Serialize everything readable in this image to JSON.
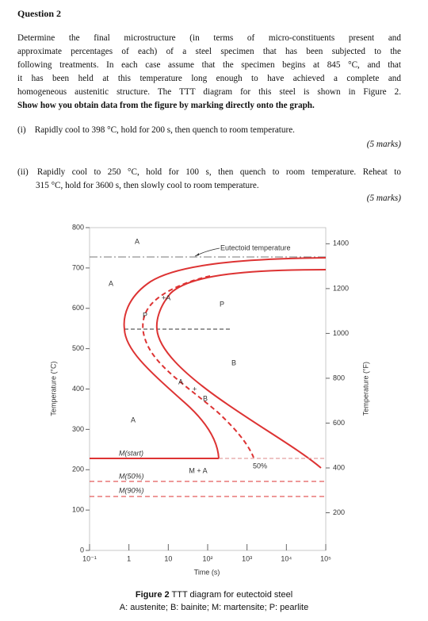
{
  "document": {
    "heading": "Question 2",
    "paragraph": [
      "Determine the final microstructure (in terms of micro-constituents present and",
      "approximate percentages of each) of a steel specimen that has been subjected to the",
      "following treatments. In each case assume that the specimen begins at 845 °C, and that",
      "it has been held at this temperature long enough to have achieved a complete and",
      "homogeneous austenitic structure. The TTT diagram for this steel is shown in Figure 2."
    ],
    "instruction": "Show how you obtain data from the figure by marking directly onto the graph.",
    "items": [
      {
        "lines": [
          "(i) Rapidly cool to 398 °C, hold for 200 s, then quench to room temperature."
        ],
        "marks": "(5 marks)"
      },
      {
        "lines": [
          "(ii) Rapidly cool to 250 °C, hold for 100 s, then quench to room temperature. Reheat to",
          "315 °C, hold for 3600 s, then slowly cool to room temperature."
        ],
        "marks": "(5 marks)"
      }
    ]
  },
  "chart_data": {
    "type": "line",
    "figure_label": "Figure 2",
    "title": "TTT diagram for eutectoid steel",
    "subtitle": "A: austenite; B: bainite; M: martensite; P: pearlite",
    "xlabel": "Time (s)",
    "ylabel": "Temperature (°C)",
    "y2label": "Temperature (°F)",
    "xscale": "log",
    "xlim": [
      0.1,
      100000
    ],
    "xticks": [
      {
        "value": 0.1,
        "label": "10⁻¹"
      },
      1,
      10,
      {
        "value": 100,
        "label": "10²"
      },
      {
        "value": 1000,
        "label": "10³"
      },
      {
        "value": 10000,
        "label": "10⁴"
      },
      {
        "value": 100000,
        "label": "10⁵"
      }
    ],
    "ylim": [
      0,
      800
    ],
    "yticks": [
      0,
      100,
      200,
      300,
      400,
      500,
      600,
      700,
      800
    ],
    "y2lim": [
      32,
      1472
    ],
    "y2ticks": [
      200,
      400,
      600,
      800,
      1000,
      1200,
      1400
    ],
    "annotations": [
      "Eutectoid temperature",
      "A",
      "A",
      "A",
      "P",
      "B",
      "M(start)",
      "M(50%)",
      "M(90%)",
      "M + A",
      "50%",
      "+A",
      "P",
      "A",
      "+",
      "B"
    ]
  }
}
